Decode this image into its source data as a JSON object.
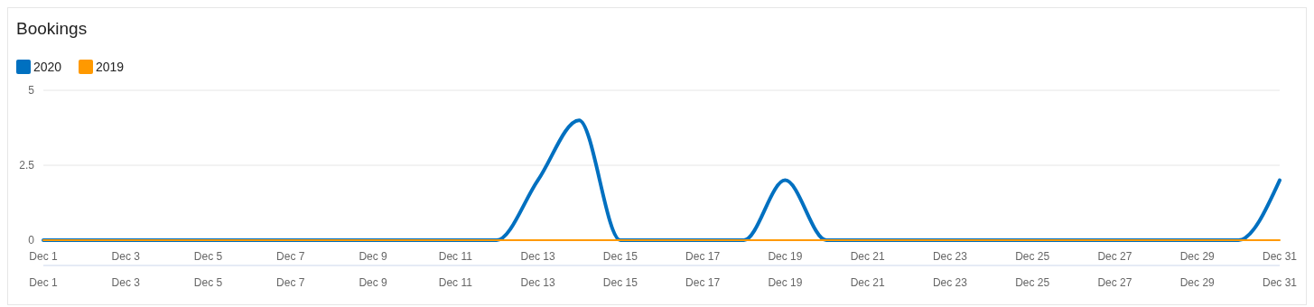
{
  "chart_data": {
    "type": "line",
    "title": "Bookings",
    "x": [
      "--12-01",
      "--12-02",
      "--12-03",
      "--12-04",
      "--12-05",
      "--12-06",
      "--12-07",
      "--12-08",
      "--12-09",
      "--12-10",
      "--12-11",
      "--12-12",
      "--12-13",
      "--12-14",
      "--12-15",
      "--12-16",
      "--12-17",
      "--12-18",
      "--12-19",
      "--12-20",
      "--12-21",
      "--12-22",
      "--12-23",
      "--12-24",
      "--12-25",
      "--12-26",
      "--12-27",
      "--12-28",
      "--12-29",
      "--12-30",
      "--12-31"
    ],
    "series": [
      {
        "name": "2020",
        "color": "#0070c0",
        "values": [
          0,
          0,
          0,
          0,
          0,
          0,
          0,
          0,
          0,
          0,
          0,
          0,
          2,
          4,
          0,
          0,
          0,
          0,
          2,
          0,
          0,
          0,
          0,
          0,
          0,
          0,
          0,
          0,
          0,
          0,
          2
        ]
      },
      {
        "name": "2019",
        "color": "#ff9900",
        "values": [
          0,
          0,
          0,
          0,
          0,
          0,
          0,
          0,
          0,
          0,
          0,
          0,
          0,
          0,
          0,
          0,
          0,
          0,
          0,
          0,
          0,
          0,
          0,
          0,
          0,
          0,
          0,
          0,
          0,
          0,
          0
        ]
      }
    ],
    "xlim": [
      "--12-01",
      "--12-31"
    ],
    "xticks": [
      {
        "value": "--12-01",
        "label": "Dec 1"
      },
      {
        "value": "--12-03",
        "label": "Dec 3"
      },
      {
        "value": "--12-05",
        "label": "Dec 5"
      },
      {
        "value": "--12-07",
        "label": "Dec 7"
      },
      {
        "value": "--12-09",
        "label": "Dec 9"
      },
      {
        "value": "--12-11",
        "label": "Dec 11"
      },
      {
        "value": "--12-13",
        "label": "Dec 13"
      },
      {
        "value": "--12-15",
        "label": "Dec 15"
      },
      {
        "value": "--12-17",
        "label": "Dec 17"
      },
      {
        "value": "--12-19",
        "label": "Dec 19"
      },
      {
        "value": "--12-21",
        "label": "Dec 21"
      },
      {
        "value": "--12-23",
        "label": "Dec 23"
      },
      {
        "value": "--12-25",
        "label": "Dec 25"
      },
      {
        "value": "--12-27",
        "label": "Dec 27"
      },
      {
        "value": "--12-29",
        "label": "Dec 29"
      },
      {
        "value": "--12-31",
        "label": "Dec 31"
      }
    ],
    "x2lim": [
      "--12-01",
      "--12-31"
    ],
    "x2ticks": [
      {
        "value": "--12-01",
        "label": "Dec 1"
      },
      {
        "value": "--12-03",
        "label": "Dec 3"
      },
      {
        "value": "--12-05",
        "label": "Dec 5"
      },
      {
        "value": "--12-07",
        "label": "Dec 7"
      },
      {
        "value": "--12-09",
        "label": "Dec 9"
      },
      {
        "value": "--12-11",
        "label": "Dec 11"
      },
      {
        "value": "--12-13",
        "label": "Dec 13"
      },
      {
        "value": "--12-15",
        "label": "Dec 15"
      },
      {
        "value": "--12-17",
        "label": "Dec 17"
      },
      {
        "value": "--12-19",
        "label": "Dec 19"
      },
      {
        "value": "--12-21",
        "label": "Dec 21"
      },
      {
        "value": "--12-23",
        "label": "Dec 23"
      },
      {
        "value": "--12-25",
        "label": "Dec 25"
      },
      {
        "value": "--12-27",
        "label": "Dec 27"
      },
      {
        "value": "--12-29",
        "label": "Dec 29"
      },
      {
        "value": "--12-31",
        "label": "Dec 31"
      }
    ],
    "ylim": [
      0,
      5
    ],
    "yticks": [
      0,
      2.5,
      5
    ],
    "grid": "y",
    "legend": "top left",
    "marker": "none",
    "line_style": "solid"
  }
}
